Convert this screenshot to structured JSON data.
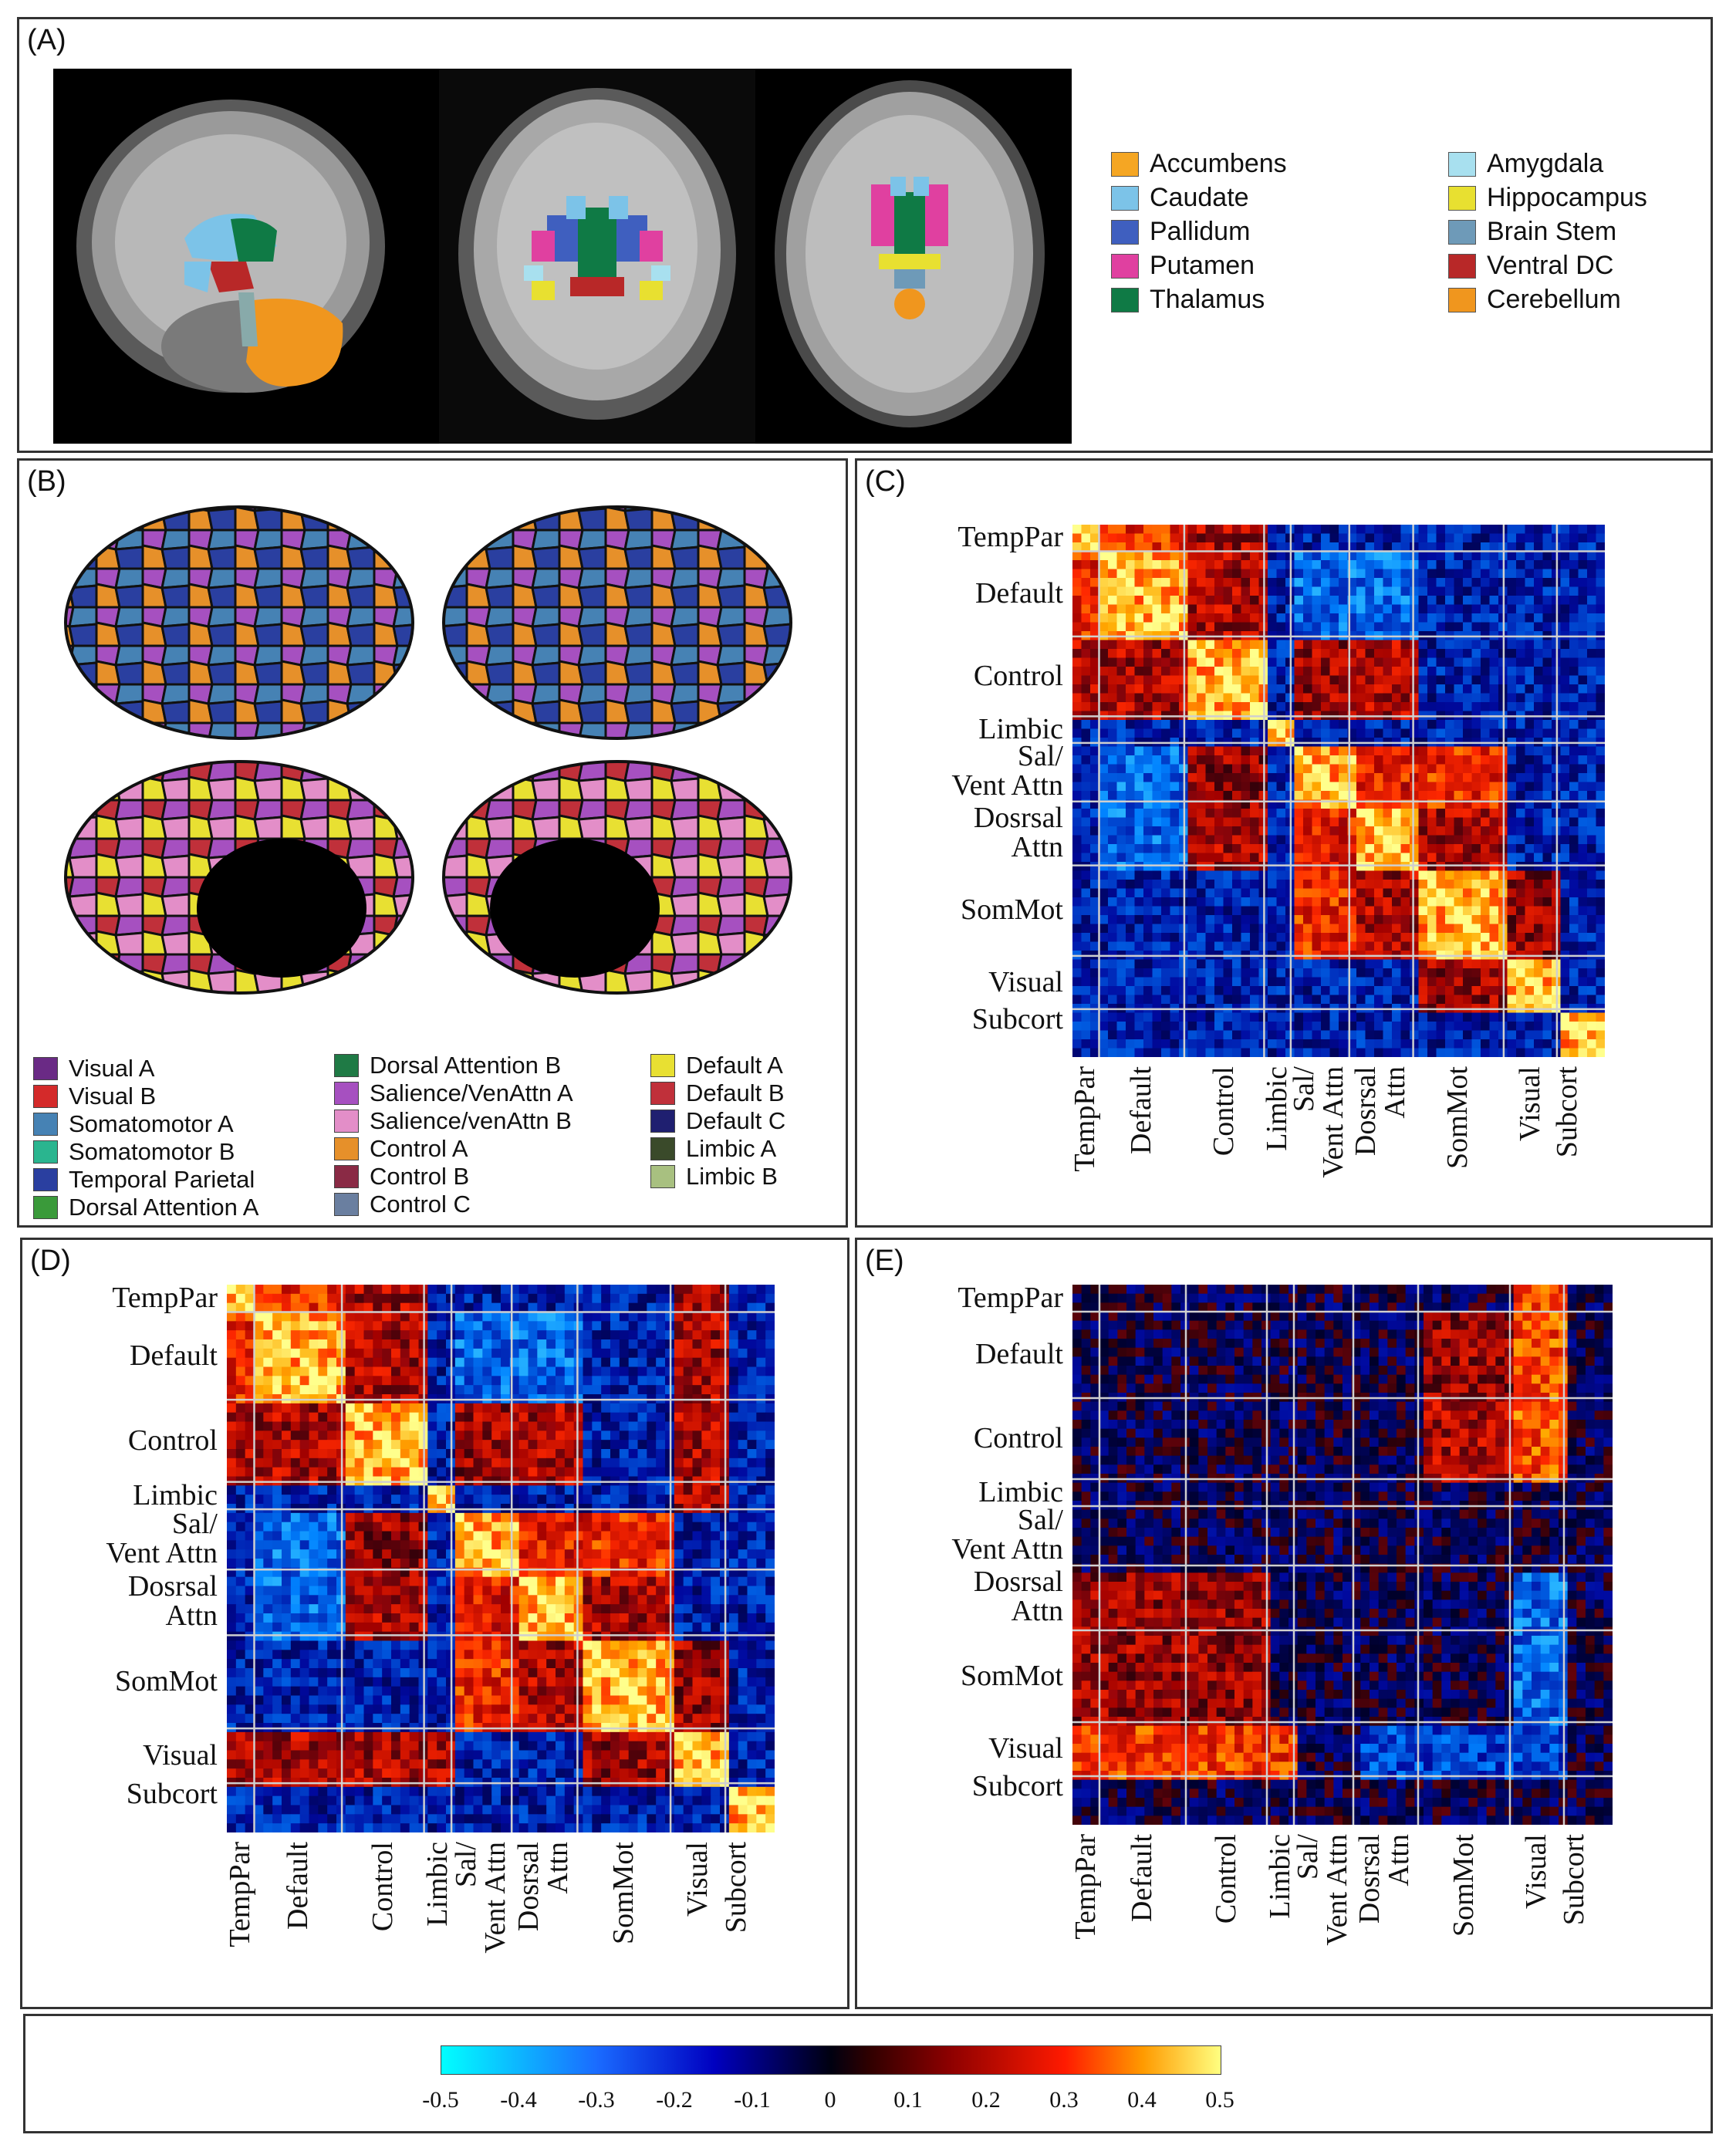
{
  "panels": {
    "a": "(A)",
    "b": "(B)",
    "c": "(C)",
    "d": "(D)",
    "e": "(E)"
  },
  "subcortical_legend": [
    {
      "label": "Accumbens",
      "color": "#f5a623"
    },
    {
      "label": "Caudate",
      "color": "#7cc3e8"
    },
    {
      "label": "Pallidum",
      "color": "#3f5fbf"
    },
    {
      "label": "Putamen",
      "color": "#e040a0"
    },
    {
      "label": "Thalamus",
      "color": "#0f7a45"
    },
    {
      "label": "Amygdala",
      "color": "#a8e0ef"
    },
    {
      "label": "Hippocampus",
      "color": "#e8e030"
    },
    {
      "label": "Brain Stem",
      "color": "#6e9ab8"
    },
    {
      "label": "Ventral DC",
      "color": "#b82828"
    },
    {
      "label": "Cerebellum",
      "color": "#f0961e"
    }
  ],
  "parcel_legend": [
    {
      "label": "Visual A",
      "color": "#6a2a85"
    },
    {
      "label": "Visual B",
      "color": "#d42a2a"
    },
    {
      "label": "Somatomotor A",
      "color": "#4682b4"
    },
    {
      "label": "Somatomotor B",
      "color": "#2ab58f"
    },
    {
      "label": "Temporal Parietal",
      "color": "#2a3fa0"
    },
    {
      "label": "Dorsal Attention A",
      "color": "#3a9a3a"
    },
    {
      "label": "Dorsal Attention B",
      "color": "#1f7a45"
    },
    {
      "label": "Salience/VenAttn A",
      "color": "#a650c0"
    },
    {
      "label": "Salience/venAttn B",
      "color": "#e38ec8"
    },
    {
      "label": "Control A",
      "color": "#e6902a"
    },
    {
      "label": "Control B",
      "color": "#8a2a45"
    },
    {
      "label": "Control C",
      "color": "#6a7fa0"
    },
    {
      "label": "Default A",
      "color": "#e8e032"
    },
    {
      "label": "Default B",
      "color": "#c0303a"
    },
    {
      "label": "Default C",
      "color": "#1f1f70"
    },
    {
      "label": "Limbic A",
      "color": "#3a4a2a"
    },
    {
      "label": "Limbic B",
      "color": "#a8c080"
    }
  ],
  "networks": [
    "TempPar",
    "Default",
    "Control",
    "Limbic",
    "Sal/ Vent Attn",
    "Dosrsal Attn",
    "SomMot",
    "Visual",
    "Subcort"
  ],
  "matrix_labels": {
    "temppar": "TempPar",
    "default": "Default",
    "control": "Control",
    "limbic": "Limbic",
    "sal1": "Sal/",
    "sal2": "Vent Attn",
    "dors1": "Dosrsal",
    "dors2": "Attn",
    "sommot": "SomMot",
    "visual": "Visual",
    "subcort": "Subcort"
  },
  "colorbar": {
    "ticks": [
      "-0.5",
      "-0.4",
      "-0.3",
      "-0.2",
      "-0.1",
      "0",
      "0.1",
      "0.2",
      "0.3",
      "0.4",
      "0.5"
    ],
    "min": -0.5,
    "max": 0.5
  }
}
